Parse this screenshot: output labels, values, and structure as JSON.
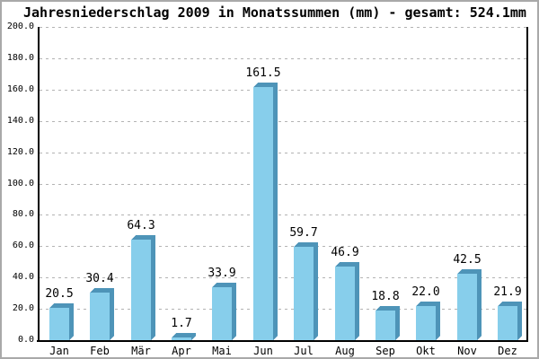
{
  "chart_data": {
    "type": "bar",
    "title": "Jahresniederschlag 2009 in Monatssummen (mm) - gesamt: 524.1mm",
    "total_annual_mm": "524.1mm",
    "unit": "mm",
    "categories": [
      "Jan",
      "Feb",
      "Mär",
      "Apr",
      "Mai",
      "Jun",
      "Jul",
      "Aug",
      "Sep",
      "Okt",
      "Nov",
      "Dez"
    ],
    "values": [
      20.5,
      30.4,
      64.3,
      1.7,
      33.9,
      161.5,
      59.7,
      46.9,
      18.8,
      22.0,
      42.5,
      21.9
    ],
    "value_labels": [
      "20.5",
      "30.4",
      "64.3",
      "1.7",
      "33.9",
      "161.5",
      "59.7",
      "46.9",
      "18.8",
      "22.0",
      "42.5",
      "21.9"
    ],
    "xlabel": "",
    "ylabel": "",
    "ylim": [
      0,
      200
    ],
    "ytick_step": 20,
    "ytick_values": [
      0,
      20,
      40,
      60,
      80,
      100,
      120,
      140,
      160,
      180,
      200
    ],
    "ytick_labels": [
      "0.0",
      "20.0",
      "40.0",
      "60.0",
      "80.0",
      "100.0",
      "120.0",
      "140.0",
      "160.0",
      "180.0",
      "200.0"
    ],
    "grid": "horizontal-dashed",
    "legend": "none",
    "bar_style": "pseudo-3d",
    "colors": {
      "bar_front": "#87CEEB",
      "bar_side": "#4E94B8",
      "grid": "#b3b3b3",
      "axis": "#000000",
      "text": "#000000",
      "background": "#ffffff",
      "border": "#a9a9a9"
    }
  }
}
